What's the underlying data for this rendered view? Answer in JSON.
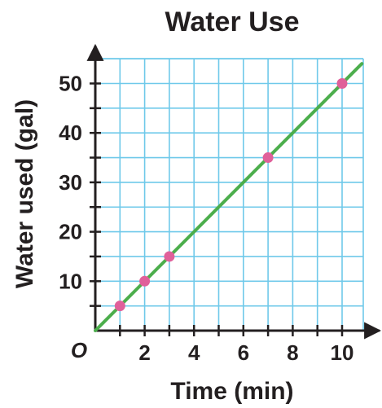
{
  "chart_data": {
    "type": "line",
    "title": "Water Use",
    "xlabel": "Time (min)",
    "ylabel": "Water used (gal)",
    "origin_label": "O",
    "xlim": [
      0,
      11
    ],
    "ylim": [
      0,
      55
    ],
    "x_ticks": [
      2,
      4,
      6,
      8,
      10
    ],
    "y_ticks": [
      10,
      20,
      30,
      40,
      50
    ],
    "grid": true,
    "line": {
      "slope": 5,
      "intercept": 0,
      "x_range": [
        0,
        10.8
      ],
      "color": "#4cae4c"
    },
    "points": [
      {
        "x": 1,
        "y": 5
      },
      {
        "x": 2,
        "y": 10
      },
      {
        "x": 3,
        "y": 15
      },
      {
        "x": 7,
        "y": 35
      },
      {
        "x": 10,
        "y": 50
      }
    ],
    "point_color": "#e0609a",
    "grid_color": "#6fc9ea"
  }
}
